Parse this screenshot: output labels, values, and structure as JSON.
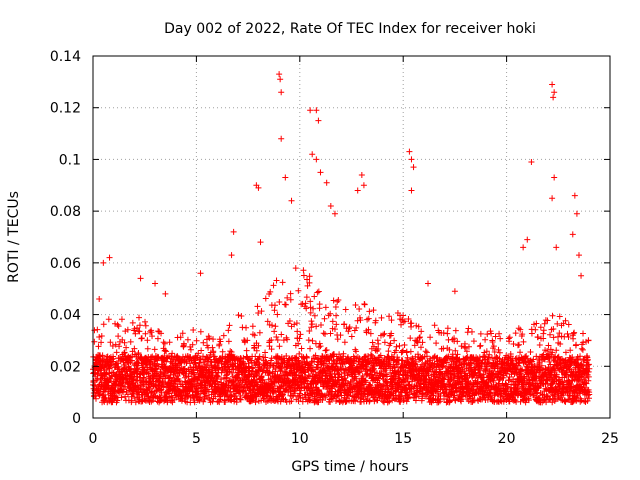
{
  "chart_data": {
    "type": "scatter",
    "title": "Day 002 of 2022, Rate Of TEC Index for receiver hoki",
    "xlabel": "GPS time / hours",
    "ylabel": "ROTI / TECUs",
    "xlim": [
      0,
      25
    ],
    "ylim": [
      0,
      0.14
    ],
    "xticks": [
      0,
      5,
      10,
      15,
      20,
      25
    ],
    "xtick_labels": [
      "0",
      "5",
      "10",
      "15",
      "20",
      "25"
    ],
    "yticks": [
      0,
      0.02,
      0.04,
      0.06,
      0.08,
      0.1,
      0.12,
      0.14
    ],
    "ytick_labels": [
      "0",
      "0.02",
      "0.04",
      "0.06",
      "0.08",
      "0.1",
      "0.12",
      "0.14"
    ],
    "grid": true,
    "marker": "plus",
    "color": "#ff0000",
    "series": [
      {
        "name": "ROTI",
        "hourly_envelope": {
          "hours": [
            0,
            1,
            2,
            3,
            4,
            5,
            6,
            7,
            8,
            9,
            10,
            11,
            12,
            13,
            14,
            15,
            16,
            17,
            18,
            19,
            20,
            21,
            22,
            23,
            24
          ],
          "typical_max": [
            0.035,
            0.04,
            0.04,
            0.035,
            0.035,
            0.035,
            0.03,
            0.04,
            0.045,
            0.055,
            0.06,
            0.05,
            0.045,
            0.045,
            0.04,
            0.045,
            0.04,
            0.035,
            0.035,
            0.035,
            0.035,
            0.035,
            0.04,
            0.04,
            0.03
          ]
        },
        "notable_points": [
          {
            "x": 0.3,
            "y": 0.046
          },
          {
            "x": 0.5,
            "y": 0.06
          },
          {
            "x": 0.8,
            "y": 0.062
          },
          {
            "x": 2.3,
            "y": 0.054
          },
          {
            "x": 3.0,
            "y": 0.052
          },
          {
            "x": 3.5,
            "y": 0.048
          },
          {
            "x": 5.2,
            "y": 0.056
          },
          {
            "x": 6.8,
            "y": 0.072
          },
          {
            "x": 6.7,
            "y": 0.063
          },
          {
            "x": 7.9,
            "y": 0.09
          },
          {
            "x": 8.0,
            "y": 0.089
          },
          {
            "x": 8.1,
            "y": 0.068
          },
          {
            "x": 9.0,
            "y": 0.133
          },
          {
            "x": 9.05,
            "y": 0.131
          },
          {
            "x": 9.1,
            "y": 0.126
          },
          {
            "x": 9.1,
            "y": 0.108
          },
          {
            "x": 9.3,
            "y": 0.093
          },
          {
            "x": 9.6,
            "y": 0.084
          },
          {
            "x": 10.5,
            "y": 0.119
          },
          {
            "x": 10.8,
            "y": 0.119
          },
          {
            "x": 10.9,
            "y": 0.115
          },
          {
            "x": 10.6,
            "y": 0.102
          },
          {
            "x": 10.8,
            "y": 0.1
          },
          {
            "x": 11.0,
            "y": 0.095
          },
          {
            "x": 11.3,
            "y": 0.091
          },
          {
            "x": 11.5,
            "y": 0.082
          },
          {
            "x": 11.7,
            "y": 0.079
          },
          {
            "x": 12.8,
            "y": 0.088
          },
          {
            "x": 13.0,
            "y": 0.094
          },
          {
            "x": 13.1,
            "y": 0.09
          },
          {
            "x": 15.3,
            "y": 0.103
          },
          {
            "x": 15.4,
            "y": 0.1
          },
          {
            "x": 15.5,
            "y": 0.097
          },
          {
            "x": 15.4,
            "y": 0.088
          },
          {
            "x": 16.2,
            "y": 0.052
          },
          {
            "x": 17.5,
            "y": 0.049
          },
          {
            "x": 20.8,
            "y": 0.066
          },
          {
            "x": 21.0,
            "y": 0.069
          },
          {
            "x": 21.2,
            "y": 0.099
          },
          {
            "x": 22.2,
            "y": 0.129
          },
          {
            "x": 22.3,
            "y": 0.126
          },
          {
            "x": 22.25,
            "y": 0.124
          },
          {
            "x": 22.2,
            "y": 0.085
          },
          {
            "x": 22.3,
            "y": 0.093
          },
          {
            "x": 22.4,
            "y": 0.066
          },
          {
            "x": 23.3,
            "y": 0.086
          },
          {
            "x": 23.4,
            "y": 0.079
          },
          {
            "x": 23.2,
            "y": 0.071
          },
          {
            "x": 23.5,
            "y": 0.063
          },
          {
            "x": 23.6,
            "y": 0.055
          }
        ]
      }
    ]
  }
}
